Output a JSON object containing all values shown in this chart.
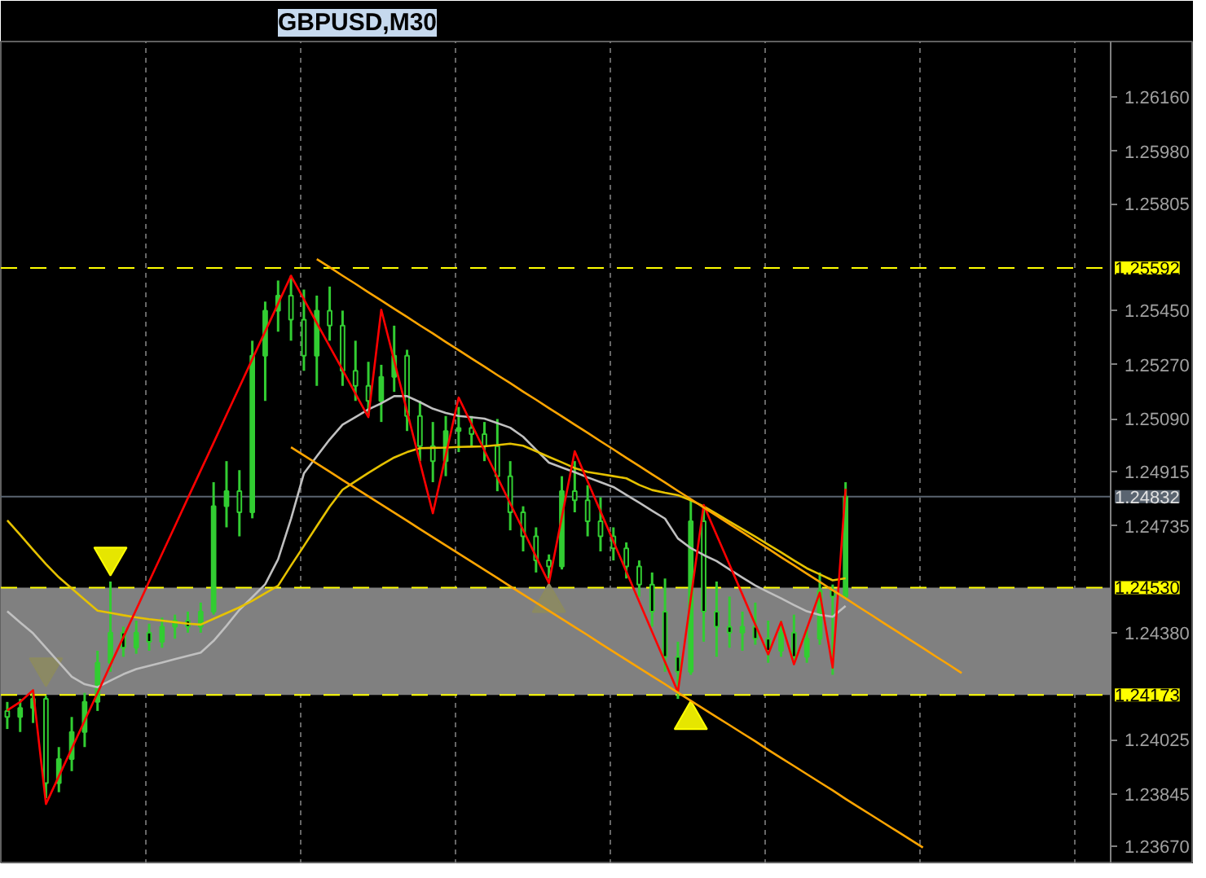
{
  "chart_data": {
    "type": "candlestick",
    "title": "GBPUSD,M30",
    "color": "#32cd32",
    "categories": [
      null,
      null,
      null,
      null,
      null,
      null,
      null,
      null,
      null,
      null,
      null,
      null,
      null,
      null,
      null,
      null,
      null,
      null,
      null,
      null,
      null,
      null,
      null,
      null,
      null,
      null,
      null,
      null,
      null,
      null,
      null,
      null,
      null,
      null,
      null,
      null,
      null,
      null,
      null,
      null,
      null,
      null,
      null,
      null,
      null,
      null,
      null,
      null,
      null,
      null,
      null,
      null,
      null,
      null,
      null,
      null,
      null,
      null,
      null,
      null,
      null,
      null,
      null,
      null,
      null,
      null,
      null,
      null,
      null,
      null,
      null,
      null,
      null,
      null,
      null,
      null,
      null,
      null,
      null,
      null,
      null,
      null,
      null,
      null,
      null,
      null
    ],
    "ohlc": [
      [
        1.2412,
        1.2415,
        1.2406,
        1.241
      ],
      [
        1.241,
        1.2416,
        1.2405,
        1.2413
      ],
      [
        1.2413,
        1.2419,
        1.2408,
        1.2416
      ],
      [
        1.2416,
        1.2417,
        1.2383,
        1.2388
      ],
      [
        1.2388,
        1.24,
        1.2385,
        1.2396
      ],
      [
        1.2396,
        1.241,
        1.2392,
        1.2405
      ],
      [
        1.2405,
        1.2418,
        1.24,
        1.2415
      ],
      [
        1.2415,
        1.2432,
        1.2412,
        1.2428
      ],
      [
        1.2428,
        1.2455,
        1.2425,
        1.2438
      ],
      [
        1.2438,
        1.244,
        1.243,
        1.2433
      ],
      [
        1.2433,
        1.2442,
        1.2431,
        1.2438
      ],
      [
        1.2438,
        1.2441,
        1.2432,
        1.2435
      ],
      [
        1.2435,
        1.2443,
        1.2433,
        1.244
      ],
      [
        1.244,
        1.2444,
        1.2436,
        1.2442
      ],
      [
        1.2442,
        1.2445,
        1.2438,
        1.244
      ],
      [
        1.244,
        1.2448,
        1.2438,
        1.2445
      ],
      [
        1.2445,
        1.2488,
        1.2444,
        1.248
      ],
      [
        1.248,
        1.2495,
        1.2473,
        1.2485
      ],
      [
        1.2485,
        1.2492,
        1.247,
        1.2478
      ],
      [
        1.2478,
        1.2535,
        1.2476,
        1.253
      ],
      [
        1.253,
        1.2548,
        1.2515,
        1.2545
      ],
      [
        1.2545,
        1.2555,
        1.2538,
        1.255
      ],
      [
        1.255,
        1.25566,
        1.2535,
        1.2542
      ],
      [
        1.2542,
        1.2552,
        1.2525,
        1.253
      ],
      [
        1.253,
        1.255,
        1.252,
        1.2545
      ],
      [
        1.2545,
        1.2553,
        1.2535,
        1.254
      ],
      [
        1.254,
        1.2545,
        1.252,
        1.2525
      ],
      [
        1.2525,
        1.2535,
        1.2515,
        1.252
      ],
      [
        1.252,
        1.2528,
        1.251,
        1.2515
      ],
      [
        1.2515,
        1.2527,
        1.2508,
        1.2523
      ],
      [
        1.2523,
        1.254,
        1.2518,
        1.253
      ],
      [
        1.253,
        1.2532,
        1.2505,
        1.251
      ],
      [
        1.251,
        1.2515,
        1.2495,
        1.25
      ],
      [
        1.25,
        1.2508,
        1.2488,
        1.2495
      ],
      [
        1.2495,
        1.251,
        1.249,
        1.2505
      ],
      [
        1.2505,
        1.2513,
        1.2498,
        1.2506
      ],
      [
        1.2506,
        1.251,
        1.25,
        1.2504
      ],
      [
        1.2504,
        1.2508,
        1.2495,
        1.25
      ],
      [
        1.25,
        1.2509,
        1.2485,
        1.249
      ],
      [
        1.249,
        1.2495,
        1.2472,
        1.2478
      ],
      [
        1.2478,
        1.248,
        1.2465,
        1.247
      ],
      [
        1.247,
        1.2473,
        1.2458,
        1.2462
      ],
      [
        1.2462,
        1.2464,
        1.2456,
        1.246
      ],
      [
        1.246,
        1.249,
        1.2459,
        1.2485
      ],
      [
        1.2485,
        1.2495,
        1.2478,
        1.2482
      ],
      [
        1.2482,
        1.2487,
        1.247,
        1.2475
      ],
      [
        1.2475,
        1.2483,
        1.2465,
        1.247
      ],
      [
        1.247,
        1.2473,
        1.2462,
        1.2466
      ],
      [
        1.2466,
        1.2468,
        1.2456,
        1.246
      ],
      [
        1.246,
        1.2462,
        1.245,
        1.2454
      ],
      [
        1.2454,
        1.2458,
        1.244,
        1.2445
      ],
      [
        1.2445,
        1.2456,
        1.2425,
        1.243
      ],
      [
        1.243,
        1.2435,
        1.2416,
        1.2425
      ],
      [
        1.2425,
        1.2482,
        1.2424,
        1.2475
      ],
      [
        1.2475,
        1.248,
        1.2435,
        1.2445
      ],
      [
        1.2445,
        1.2455,
        1.243,
        1.244
      ],
      [
        1.244,
        1.245,
        1.2433,
        1.2438
      ],
      [
        1.2438,
        1.2445,
        1.2432,
        1.244
      ],
      [
        1.244,
        1.2448,
        1.2434,
        1.2436
      ],
      [
        1.2436,
        1.2442,
        1.2428,
        1.2432
      ],
      [
        1.2432,
        1.2442,
        1.243,
        1.2438
      ],
      [
        1.2438,
        1.2444,
        1.2428,
        1.243
      ],
      [
        1.243,
        1.244,
        1.2428,
        1.2436
      ],
      [
        1.2436,
        1.2458,
        1.2434,
        1.2452
      ],
      [
        1.2452,
        1.2454,
        1.2424,
        1.245
      ],
      [
        1.245,
        1.2488,
        1.2449,
        1.24832
      ],
      null,
      null,
      null,
      null,
      null,
      null,
      null,
      null,
      null,
      null,
      null,
      null,
      null,
      null,
      null,
      null,
      null,
      null,
      null,
      null
    ],
    "series": [
      {
        "type": "line",
        "color": "#c0c0c0",
        "values": [
          1.24451,
          1.24414,
          1.24378,
          1.2433,
          1.24282,
          1.24234,
          1.24209,
          1.24199,
          1.24221,
          1.24242,
          1.24259,
          1.2427,
          1.24281,
          1.24292,
          1.24303,
          1.24314,
          1.24353,
          1.24403,
          1.24456,
          1.24498,
          1.24541,
          1.24624,
          1.24758,
          1.24909,
          1.24966,
          1.25022,
          1.25071,
          1.25096,
          1.25122,
          1.25142,
          1.25166,
          1.25166,
          1.25146,
          1.25124,
          1.2511,
          1.251,
          1.25096,
          1.25091,
          1.25076,
          1.25061,
          1.25031,
          1.24988,
          1.24945,
          1.24929,
          1.24913,
          1.24896,
          1.2488,
          1.24864,
          1.24838,
          1.24812,
          1.24785,
          1.24759,
          1.24693,
          1.24661,
          1.24638,
          1.24618,
          1.2459,
          1.24563,
          1.24537,
          1.24515,
          1.24494,
          1.24472,
          1.24451,
          1.24439,
          1.24433,
          1.24469,
          null,
          null,
          null,
          null,
          null,
          null,
          null,
          null,
          null,
          null,
          null,
          null,
          null,
          null,
          null,
          null,
          null,
          null,
          null,
          null
        ]
      },
      {
        "type": "line",
        "color": "#e6c200",
        "values": [
          1.24753,
          1.24705,
          1.24656,
          1.24608,
          1.24564,
          1.24527,
          1.2449,
          1.24453,
          1.24446,
          1.24438,
          1.24431,
          1.24425,
          1.2442,
          1.24415,
          1.2441,
          1.24407,
          1.24426,
          1.24445,
          1.24464,
          1.24486,
          1.24511,
          1.24536,
          1.24603,
          1.24668,
          1.24734,
          1.24799,
          1.24855,
          1.24883,
          1.24911,
          1.24937,
          1.24962,
          1.2498,
          1.24993,
          1.24994,
          1.24995,
          1.24997,
          1.24998,
          1.24999,
          1.25003,
          1.25008,
          1.25001,
          1.24983,
          1.24964,
          1.24946,
          1.24927,
          1.24914,
          1.24907,
          1.249,
          1.24893,
          1.24871,
          1.24854,
          1.24845,
          1.24837,
          1.2482,
          1.248,
          1.24775,
          1.24749,
          1.24724,
          1.24699,
          1.24673,
          1.24647,
          1.2462,
          1.24594,
          1.24574,
          1.24554,
          1.24561,
          null,
          null,
          null,
          null,
          null,
          null,
          null,
          null,
          null,
          null,
          null,
          null,
          null,
          null,
          null,
          null,
          null,
          null,
          null,
          null
        ]
      },
      {
        "type": "line",
        "color": "#ff0000",
        "values": [
          1.24122,
          1.2415,
          1.24189,
          1.23811,
          1.23903,
          1.23995,
          1.24088,
          1.2418,
          1.24273,
          1.24365,
          1.24457,
          1.2455,
          1.24642,
          1.24734,
          1.24827,
          1.24919,
          1.25011,
          1.25104,
          1.25196,
          1.25289,
          1.25381,
          1.25473,
          1.25566,
          1.25488,
          1.25409,
          1.25331,
          1.25253,
          1.25174,
          1.25096,
          1.25453,
          1.25284,
          1.25115,
          1.24946,
          1.24777,
          1.24969,
          1.25161,
          1.25073,
          1.24985,
          1.24897,
          1.24809,
          1.24721,
          1.24633,
          1.24545,
          1.24764,
          1.24983,
          1.24883,
          1.24783,
          1.24683,
          1.24583,
          1.24483,
          1.24383,
          1.24283,
          1.24183,
          1.24494,
          1.24804,
          1.24705,
          1.24606,
          1.24507,
          1.24407,
          1.24308,
          1.24416,
          1.24275,
          1.24394,
          1.24513,
          1.24264,
          1.24858,
          null,
          null,
          null,
          null,
          null,
          null,
          null,
          null,
          null,
          null,
          null,
          null,
          null,
          null,
          null,
          null,
          null,
          null,
          null,
          null
        ]
      },
      {
        "type": "line",
        "color": "#ffa500",
        "values": [
          null,
          null,
          null,
          null,
          null,
          null,
          null,
          null,
          null,
          null,
          null,
          null,
          null,
          null,
          null,
          null,
          null,
          null,
          null,
          null,
          null,
          null,
          null,
          null,
          1.25621,
          1.25594,
          1.25566,
          1.25539,
          1.25511,
          1.25484,
          1.25456,
          1.25429,
          1.25401,
          1.25374,
          1.25346,
          1.25319,
          1.25291,
          1.25264,
          1.25236,
          1.25209,
          1.25181,
          1.25154,
          1.25126,
          1.25099,
          1.25071,
          1.25044,
          1.25016,
          1.24989,
          1.24961,
          1.24934,
          1.24906,
          1.24879,
          1.24851,
          1.24824,
          1.24796,
          1.24769,
          1.24741,
          1.24714,
          1.24686,
          1.24659,
          1.24631,
          1.24604,
          1.24576,
          1.24549,
          1.24521,
          1.24494,
          1.24466,
          1.24439,
          1.24411,
          1.24384,
          1.24356,
          1.24329,
          1.24301,
          1.24274,
          1.24246,
          null,
          null,
          null,
          null,
          null,
          null,
          null,
          null,
          null,
          null,
          null
        ]
      },
      {
        "type": "line",
        "color": "#ffa500",
        "values": [
          null,
          null,
          null,
          null,
          null,
          null,
          null,
          null,
          null,
          null,
          null,
          null,
          null,
          null,
          null,
          null,
          null,
          null,
          null,
          null,
          null,
          null,
          1.24996,
          1.24969,
          1.24942,
          1.24915,
          1.24887,
          1.2486,
          1.24833,
          1.24806,
          1.24779,
          1.24752,
          1.24724,
          1.24697,
          1.2467,
          1.24643,
          1.24616,
          1.24589,
          1.24562,
          1.24534,
          1.24507,
          1.2448,
          1.24453,
          1.24426,
          1.24399,
          1.24372,
          1.24344,
          1.24317,
          1.2429,
          1.24263,
          1.24236,
          1.24209,
          1.24181,
          1.24154,
          1.24127,
          1.241,
          1.24073,
          1.24046,
          1.24019,
          1.23991,
          1.23964,
          1.23937,
          1.2391,
          1.23883,
          1.23856,
          1.23828,
          1.23801,
          1.23774,
          1.23747,
          1.2372,
          1.23693,
          1.23666,
          null,
          null,
          null,
          null,
          null,
          null,
          null,
          null,
          null,
          null,
          null,
          null,
          null,
          null
        ]
      },
      {
        "type": "scatter",
        "color": "#8c8a60",
        "values": [
          null,
          null,
          null,
          1.24264,
          null,
          null,
          null,
          null,
          null,
          null,
          null,
          null,
          null,
          null,
          null,
          null,
          null,
          null,
          null,
          null,
          null,
          null,
          null,
          null,
          null,
          null,
          null,
          null,
          null,
          null,
          null,
          null,
          null,
          null,
          null,
          null,
          null,
          null,
          null,
          null,
          null,
          null,
          null,
          null,
          null,
          null,
          null,
          null,
          null,
          null,
          null,
          null,
          null,
          null,
          null,
          null,
          null,
          null,
          null,
          null,
          null,
          null,
          null,
          null,
          null,
          null,
          null,
          null,
          null,
          null,
          null,
          null,
          null,
          null,
          null,
          null,
          null,
          null,
          null,
          null,
          null,
          null,
          null,
          null,
          null,
          null
        ]
      },
      {
        "type": "scatter",
        "color": "#ffff00",
        "values": [
          null,
          null,
          null,
          null,
          null,
          null,
          null,
          null,
          1.24632,
          null,
          null,
          null,
          null,
          null,
          null,
          null,
          null,
          null,
          null,
          null,
          null,
          null,
          null,
          null,
          null,
          null,
          null,
          null,
          null,
          null,
          null,
          null,
          null,
          null,
          null,
          null,
          null,
          null,
          null,
          null,
          null,
          null,
          null,
          null,
          null,
          null,
          null,
          null,
          null,
          null,
          null,
          null,
          null,
          null,
          null,
          null,
          null,
          null,
          null,
          null,
          null,
          null,
          null,
          null,
          null,
          null,
          null,
          null,
          null,
          null,
          null,
          null,
          null,
          null,
          null,
          null,
          null,
          null,
          null,
          null,
          null,
          null,
          null,
          null,
          null,
          null
        ]
      },
      {
        "type": "scatter",
        "marker": "triangle",
        "color": "#8c8a60",
        "values": [
          null,
          null,
          null,
          null,
          null,
          null,
          null,
          null,
          null,
          null,
          null,
          null,
          null,
          null,
          null,
          null,
          null,
          null,
          null,
          null,
          null,
          null,
          null,
          null,
          null,
          null,
          null,
          null,
          null,
          null,
          null,
          null,
          null,
          null,
          null,
          null,
          null,
          null,
          null,
          null,
          null,
          null,
          1.2448,
          null,
          null,
          null,
          null,
          null,
          null,
          null,
          null,
          null,
          null,
          null,
          null,
          null,
          null,
          null,
          null,
          null,
          null,
          null,
          null,
          null,
          null,
          null,
          null,
          null,
          null,
          null,
          null,
          null,
          null,
          null,
          null,
          null,
          null,
          null,
          null,
          null,
          null,
          null,
          null,
          null,
          null,
          null
        ]
      },
      {
        "type": "scatter",
        "marker": "triangle",
        "color": "#ffff00",
        "values": [
          null,
          null,
          null,
          null,
          null,
          null,
          null,
          null,
          null,
          null,
          null,
          null,
          null,
          null,
          null,
          null,
          null,
          null,
          null,
          null,
          null,
          null,
          null,
          null,
          null,
          null,
          null,
          null,
          null,
          null,
          null,
          null,
          null,
          null,
          null,
          null,
          null,
          null,
          null,
          null,
          null,
          null,
          null,
          null,
          null,
          null,
          null,
          null,
          null,
          null,
          null,
          null,
          null,
          1.24091,
          null,
          null,
          null,
          null,
          null,
          null,
          null,
          null,
          null,
          null,
          null,
          null,
          null,
          null,
          null,
          null,
          null,
          null,
          null,
          null,
          null,
          null,
          null,
          null,
          null,
          null,
          null,
          null,
          null,
          null,
          null,
          null
        ]
      }
    ],
    "bands": [
      {
        "axis": "y",
        "from": 1.24173,
        "to": 1.2453,
        "color": "#808080"
      }
    ],
    "ref_lines": [
      {
        "axis": "y",
        "value": 1.25592,
        "label": "1.25592",
        "color": "#ffff00",
        "line_style": "dashed"
      },
      {
        "axis": "y",
        "value": 1.2453,
        "label": "1.24530",
        "color": "#ffff00",
        "line_style": "dashed"
      },
      {
        "axis": "y",
        "value": 1.24173,
        "label": "1.24173",
        "color": "#ffff00",
        "line_style": "dashed"
      },
      {
        "axis": "y",
        "value": 1.24832,
        "label": "1.24832",
        "color": "#5a6470",
        "line_style": "solid"
      }
    ],
    "ylim": [
      1.23611,
      1.26344
    ],
    "yticks": [
      {
        "value": 1.2616,
        "label": "1.26160"
      },
      {
        "value": 1.2598,
        "label": "1.25980"
      },
      {
        "value": 1.25805,
        "label": "1.25805"
      },
      {
        "value": 1.2545,
        "label": "1.25450"
      },
      {
        "value": 1.2527,
        "label": "1.25270"
      },
      {
        "value": 1.2509,
        "label": "1.25090"
      },
      {
        "value": 1.24915,
        "label": "1.24915"
      },
      {
        "value": 1.24735,
        "label": "1.24735"
      },
      {
        "value": 1.2438,
        "label": "1.24380"
      },
      {
        "value": 1.24025,
        "label": "1.24025"
      },
      {
        "value": 1.23845,
        "label": "1.23845"
      },
      {
        "value": 1.2367,
        "label": "1.23670"
      }
    ],
    "grid": "x",
    "tick_labels": "y"
  }
}
